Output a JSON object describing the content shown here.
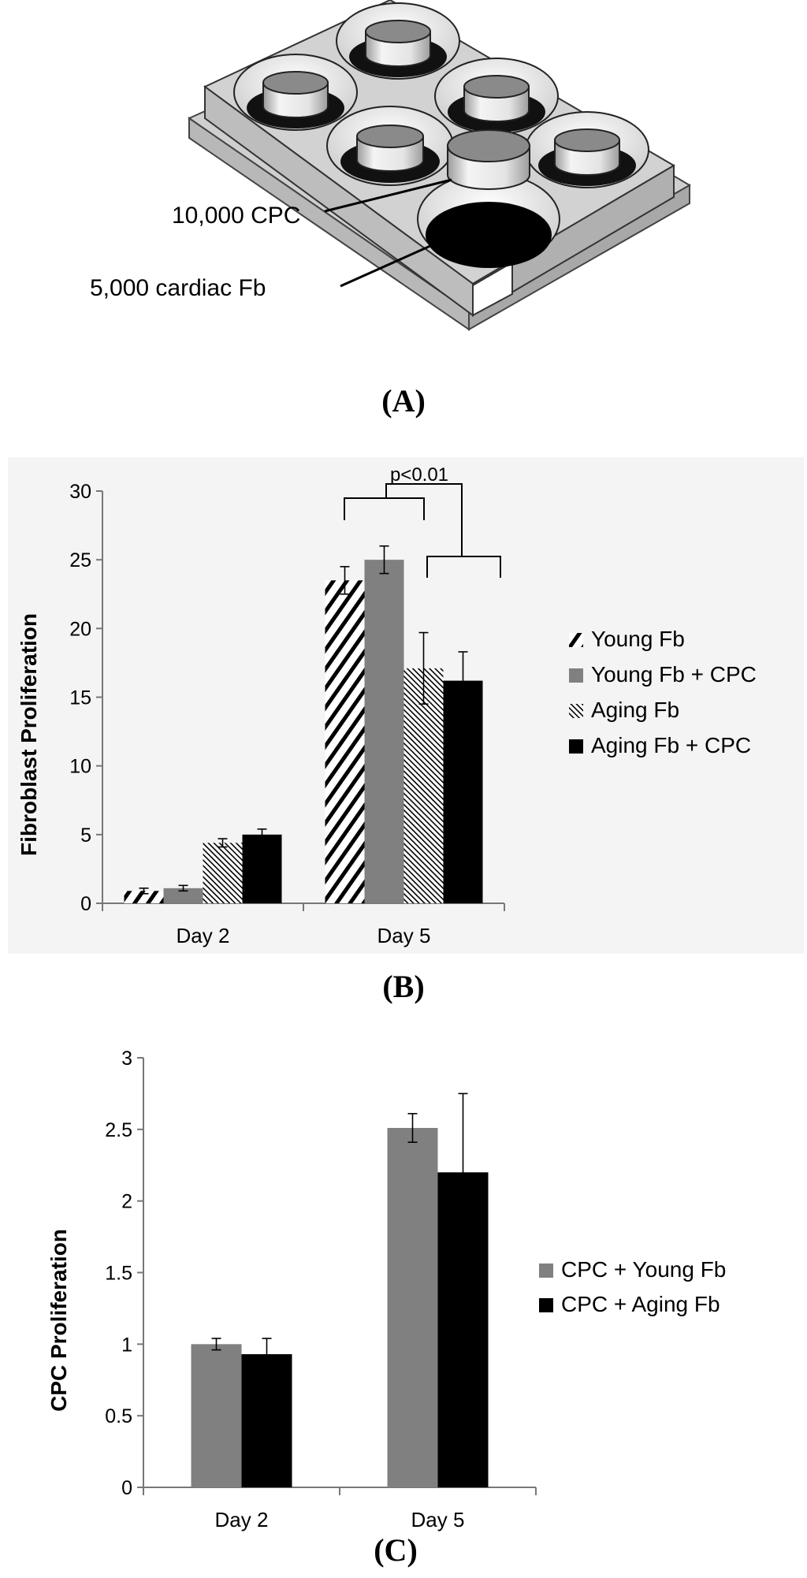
{
  "figure_a": {
    "label_cpc": "10,000 CPC",
    "label_fb": "5,000 cardiac Fb",
    "caption": "(A)"
  },
  "figure_b": {
    "caption": "(B)",
    "annotation": "p<0.01"
  },
  "figure_c": {
    "caption": "(C)"
  },
  "colors": {
    "gray": "#808080",
    "black": "#000000",
    "panel_bg": "#f4f4f4"
  },
  "chart_data": [
    {
      "type": "bar",
      "title": "",
      "xlabel": "",
      "ylabel": "Fibroblast Proliferation",
      "ylim": [
        0,
        30
      ],
      "yticks": [
        "0",
        "5",
        "10",
        "15",
        "20",
        "25",
        "30"
      ],
      "categories": [
        "Day 2",
        "Day 5"
      ],
      "legend_position": "right",
      "series": [
        {
          "name": "Young Fb",
          "pattern": "wide-diagonal-hatch",
          "values": [
            0.9,
            23.5
          ],
          "errors": [
            0.2,
            1.0
          ]
        },
        {
          "name": "Young Fb + CPC",
          "pattern": "solid-gray",
          "values": [
            1.1,
            25.0
          ],
          "errors": [
            0.2,
            1.0
          ]
        },
        {
          "name": "Aging Fb",
          "pattern": "fine-diagonal-hatch",
          "values": [
            4.4,
            17.1
          ],
          "errors": [
            0.3,
            2.6
          ]
        },
        {
          "name": "Aging Fb + CPC",
          "pattern": "solid-black",
          "values": [
            5.0,
            16.2
          ],
          "errors": [
            0.4,
            2.1
          ]
        }
      ],
      "annotations": [
        "p<0.01"
      ]
    },
    {
      "type": "bar",
      "title": "",
      "xlabel": "",
      "ylabel": "CPC Proliferation",
      "ylim": [
        0,
        3
      ],
      "yticks": [
        "0",
        "0.5",
        "1",
        "1.5",
        "2",
        "2.5",
        "3"
      ],
      "categories": [
        "Day 2",
        "Day 5"
      ],
      "legend_position": "right",
      "series": [
        {
          "name": "CPC + Young Fb",
          "pattern": "solid-gray",
          "values": [
            1.0,
            2.51
          ],
          "errors": [
            0.04,
            0.1
          ]
        },
        {
          "name": "CPC + Aging Fb",
          "pattern": "solid-black",
          "values": [
            0.93,
            2.2
          ],
          "errors": [
            0.11,
            0.55
          ]
        }
      ]
    }
  ]
}
